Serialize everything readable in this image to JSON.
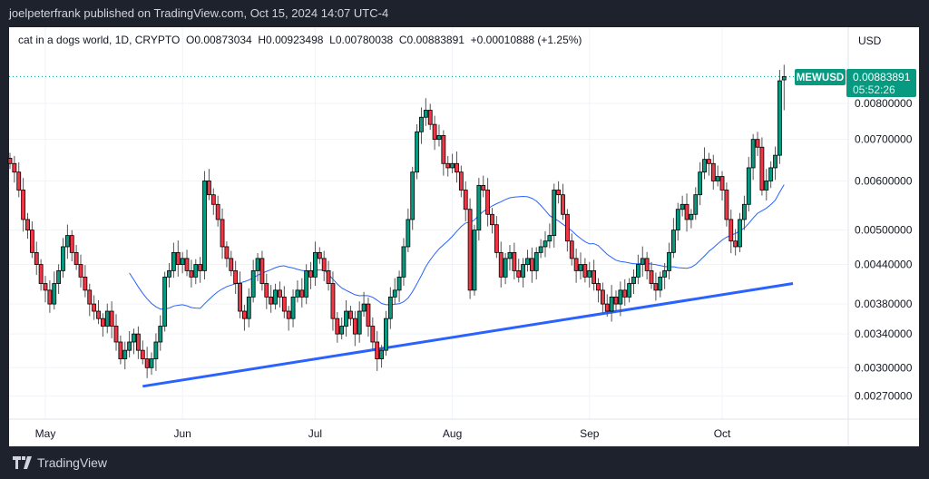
{
  "header": {
    "published": "joelpeterfrank published on TradingView.com, Oct 15, 2024 14:07 UTC-4"
  },
  "legend": {
    "symbol": "cat in a dogs world, 1D, CRYPTO",
    "open": "O0.00873034",
    "high": "H0.00923498",
    "low": "L0.00780038",
    "close": "C0.00883891",
    "change": "+0.00010888 (+1.25%)"
  },
  "price_axis": {
    "currency": "USD",
    "ticker_label": "MEWUSD",
    "last_price": "0.00883891",
    "countdown": "05:52:26"
  },
  "footer": {
    "brand": "TradingView"
  },
  "colors": {
    "up": "#089981",
    "down": "#f23645",
    "ma": "#2962ff",
    "trendline": "#2962ff",
    "last_price": "#089981"
  },
  "chart_data": {
    "type": "candlestick",
    "scale": "log",
    "start_date": "2024-04-23",
    "interval": "1D",
    "x_ticks": [
      {
        "label": "May",
        "date": "2024-05-01"
      },
      {
        "label": "Jun",
        "date": "2024-06-01"
      },
      {
        "label": "Jul",
        "date": "2024-07-01"
      },
      {
        "label": "Aug",
        "date": "2024-08-01"
      },
      {
        "label": "Sep",
        "date": "2024-09-01"
      },
      {
        "label": "Oct",
        "date": "2024-10-01"
      }
    ],
    "y_ticks": [
      "0.00800000",
      "0.00700000",
      "0.00600000",
      "0.00500000",
      "0.00440000",
      "0.00380000",
      "0.00340000",
      "0.00300000",
      "0.00270000"
    ],
    "grid": true,
    "close": [
      0.0064,
      0.0062,
      0.0058,
      0.0052,
      0.005,
      0.0046,
      0.0044,
      0.0041,
      0.004,
      0.0038,
      0.0041,
      0.0043,
      0.0047,
      0.0049,
      0.0046,
      0.0044,
      0.0042,
      0.004,
      0.0038,
      0.0037,
      0.0036,
      0.0035,
      0.0037,
      0.0035,
      0.0033,
      0.0031,
      0.0032,
      0.0033,
      0.0034,
      0.0032,
      0.0031,
      0.003,
      0.0031,
      0.0033,
      0.0035,
      0.0042,
      0.0043,
      0.0046,
      0.0044,
      0.0045,
      0.0043,
      0.0042,
      0.0044,
      0.0043,
      0.006,
      0.0057,
      0.0055,
      0.0052,
      0.0047,
      0.0045,
      0.0043,
      0.0041,
      0.0037,
      0.0036,
      0.0039,
      0.0043,
      0.0045,
      0.0041,
      0.0039,
      0.0038,
      0.004,
      0.0039,
      0.0037,
      0.0036,
      0.0039,
      0.004,
      0.0039,
      0.0043,
      0.0042,
      0.0046,
      0.0045,
      0.0043,
      0.0041,
      0.0036,
      0.0034,
      0.0035,
      0.0037,
      0.0036,
      0.0034,
      0.0037,
      0.0038,
      0.0035,
      0.0033,
      0.0031,
      0.0032,
      0.0036,
      0.0039,
      0.004,
      0.0042,
      0.0047,
      0.0052,
      0.0062,
      0.0072,
      0.0076,
      0.0078,
      0.0074,
      0.007,
      0.0071,
      0.0064,
      0.0063,
      0.0064,
      0.0062,
      0.0058,
      0.0054,
      0.004,
      0.005,
      0.0059,
      0.0058,
      0.0053,
      0.0051,
      0.0046,
      0.0042,
      0.0045,
      0.0046,
      0.0043,
      0.0042,
      0.0044,
      0.0045,
      0.0043,
      0.0046,
      0.0047,
      0.0048,
      0.0049,
      0.0058,
      0.0057,
      0.0053,
      0.0048,
      0.0045,
      0.0043,
      0.0044,
      0.0042,
      0.0043,
      0.0041,
      0.004,
      0.0038,
      0.0037,
      0.0039,
      0.0038,
      0.004,
      0.0039,
      0.0041,
      0.0042,
      0.0044,
      0.0045,
      0.0043,
      0.0041,
      0.004,
      0.0042,
      0.0043,
      0.0046,
      0.005,
      0.0054,
      0.0055,
      0.0052,
      0.0053,
      0.0057,
      0.0062,
      0.0065,
      0.0064,
      0.006,
      0.0061,
      0.0058,
      0.0052,
      0.0048,
      0.0047,
      0.0052,
      0.0055,
      0.0063,
      0.007,
      0.0068,
      0.0058,
      0.006,
      0.0063,
      0.0066,
      0.0087,
      0.00883891
    ],
    "last_candle": {
      "open": 0.00873034,
      "high": 0.00923498,
      "low": 0.00780038,
      "close": 0.00883891
    },
    "trendline": {
      "from": {
        "date": "2024-05-23",
        "price": 0.0028
      },
      "to": {
        "date": "2024-10-17",
        "price": 0.0041
      }
    }
  }
}
